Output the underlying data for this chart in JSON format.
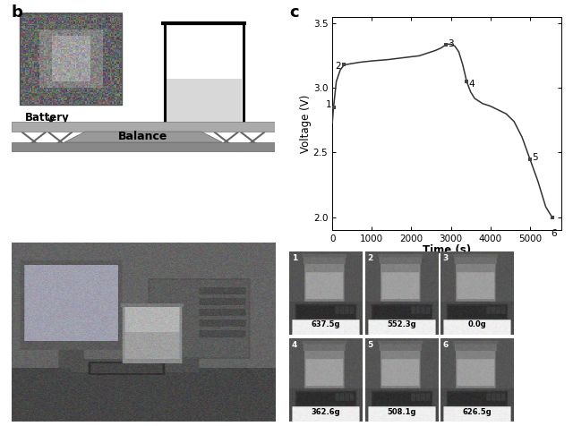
{
  "panel_b_label": "b",
  "panel_c_label": "c",
  "voltage_time": [
    0,
    30,
    100,
    200,
    300,
    500,
    700,
    1000,
    1400,
    1800,
    2200,
    2600,
    2750,
    2820,
    2870,
    2900,
    2950,
    3000,
    3100,
    3200,
    3300,
    3400,
    3500,
    3600,
    3700,
    3800,
    3900,
    4000,
    4200,
    4400,
    4600,
    4800,
    5000,
    5200,
    5400,
    5560
  ],
  "voltage_values": [
    2.73,
    2.85,
    3.05,
    3.14,
    3.18,
    3.19,
    3.2,
    3.21,
    3.22,
    3.235,
    3.25,
    3.29,
    3.31,
    3.325,
    3.335,
    3.34,
    3.34,
    3.34,
    3.325,
    3.28,
    3.18,
    3.05,
    2.97,
    2.92,
    2.9,
    2.88,
    2.87,
    2.86,
    2.83,
    2.8,
    2.74,
    2.62,
    2.45,
    2.28,
    2.08,
    2.0
  ],
  "point_times": [
    30,
    300,
    2870,
    3400,
    5000,
    5560
  ],
  "point_voltages": [
    2.85,
    3.18,
    3.335,
    3.05,
    2.45,
    2.0
  ],
  "point_labels": [
    "1",
    "2",
    "3",
    "4",
    "5",
    "6"
  ],
  "xlabel": "Time (s)",
  "ylabel": "Voltage (V)",
  "xlim": [
    0,
    5800
  ],
  "ylim": [
    1.9,
    3.55
  ],
  "xticks": [
    0,
    1000,
    2000,
    3000,
    4000,
    5000
  ],
  "yticks": [
    2.0,
    2.5,
    3.0,
    3.5
  ],
  "battery_label": "Battery",
  "balance_label": "Balance",
  "weights": [
    "637.5g",
    "552.3g",
    "0.0g",
    "362.6g",
    "508.1g",
    "626.5g"
  ],
  "photo_labels": [
    "1",
    "2",
    "3",
    "4",
    "5",
    "6"
  ],
  "bg_color": "#ffffff",
  "line_color": "#333333",
  "marker_color": "#444444",
  "diag_bg": "#ffffff",
  "beaker_fill": "#d8d8d8",
  "platform_color": "#aaaaaa",
  "platform_dark": "#888888",
  "balance_center_color": "#999999"
}
